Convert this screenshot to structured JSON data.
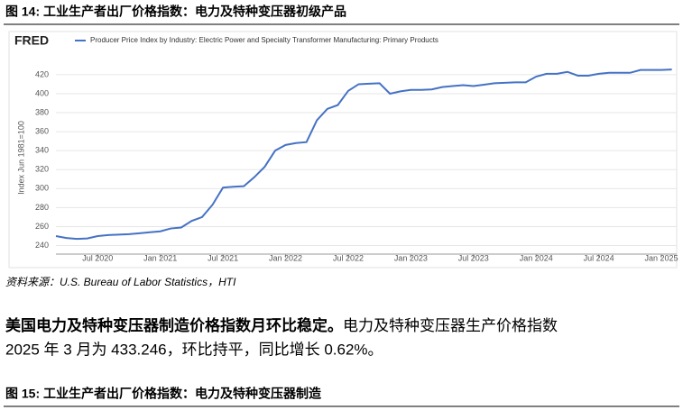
{
  "figure14": {
    "caption": "图 14: 工业生产者出厂价格指数：电力及特种变压器初级产品"
  },
  "chart_data": {
    "type": "line",
    "logo": "FRED",
    "ylabel": "Index Jun 1981=100",
    "x": [
      "2020-03",
      "2020-04",
      "2020-05",
      "2020-06",
      "2020-07",
      "2020-08",
      "2020-09",
      "2020-10",
      "2020-11",
      "2020-12",
      "2021-01",
      "2021-02",
      "2021-03",
      "2021-04",
      "2021-05",
      "2021-06",
      "2021-07",
      "2021-08",
      "2021-09",
      "2021-10",
      "2021-11",
      "2021-12",
      "2022-01",
      "2022-02",
      "2022-03",
      "2022-04",
      "2022-05",
      "2022-06",
      "2022-07",
      "2022-08",
      "2022-09",
      "2022-10",
      "2022-11",
      "2022-12",
      "2023-01",
      "2023-02",
      "2023-03",
      "2023-04",
      "2023-05",
      "2023-06",
      "2023-07",
      "2023-08",
      "2023-09",
      "2023-10",
      "2023-11",
      "2023-12",
      "2024-01",
      "2024-02",
      "2024-03",
      "2024-04",
      "2024-05",
      "2024-06",
      "2024-07",
      "2024-08",
      "2024-09",
      "2024-10",
      "2024-11",
      "2024-12",
      "2025-01",
      "2025-02"
    ],
    "series": [
      {
        "name": "Producer Price Index by Industry: Electric Power and Specialty Transformer Manufacturing: Primary Products",
        "color": "#4572c4",
        "values": [
          250,
          248,
          247,
          247.5,
          250,
          251,
          251.5,
          252,
          253,
          254,
          255,
          258,
          259,
          266,
          270,
          283,
          301,
          302,
          302.5,
          312,
          323,
          340,
          346,
          348,
          349,
          372,
          384,
          388,
          403,
          410,
          410.5,
          411,
          400,
          402.5,
          404,
          404,
          404.5,
          407,
          408,
          409,
          408,
          409.5,
          411,
          411.5,
          412,
          412,
          418,
          421,
          421,
          423,
          419,
          419,
          421,
          422,
          422,
          422,
          425,
          425,
          425,
          425.5
        ]
      }
    ],
    "ylim": [
      231,
      437
    ],
    "yticks": [
      240,
      260,
      280,
      300,
      320,
      340,
      360,
      380,
      400,
      420
    ],
    "xticks": [
      {
        "value": "2020-07",
        "label": "Jul 2020"
      },
      {
        "value": "2021-01",
        "label": "Jan 2021"
      },
      {
        "value": "2021-07",
        "label": "Jul 2021"
      },
      {
        "value": "2022-01",
        "label": "Jan 2022"
      },
      {
        "value": "2022-07",
        "label": "Jul 2022"
      },
      {
        "value": "2023-01",
        "label": "Jan 2023"
      },
      {
        "value": "2023-07",
        "label": "Jul 2023"
      },
      {
        "value": "2024-01",
        "label": "Jan 2024"
      },
      {
        "value": "2024-07",
        "label": "Jul 2024"
      },
      {
        "value": "2025-01",
        "label": "Jan 2025"
      }
    ],
    "grid": true
  },
  "source": "资料来源：U.S. Bureau of Labor Statistics，HTI",
  "paragraph": {
    "bold": "美国电力及特种变压器制造价格指数月环比稳定。",
    "lines": [
      "电力及特种变压器生产价格指数",
      "2025 年 3 月为 433.246，环比持平，同比增长 0.62%。"
    ]
  },
  "figure15": {
    "caption": "图 15: 工业生产者出厂价格指数：电力及特种变压器制造"
  }
}
